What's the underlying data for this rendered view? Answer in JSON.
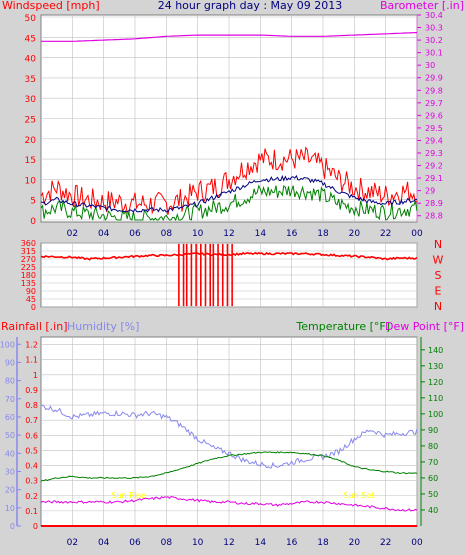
{
  "colors": {
    "background": "#d4d4d4",
    "plot_bg": "#ffffff",
    "grid": "#c0c0c0",
    "wind_avg": "#008000",
    "wind_gust": "#ff0000",
    "wind_10min": "#000080",
    "barometer": "#e000e0",
    "direction": "#ff0000",
    "rain": "#ff0000",
    "humidity": "#8888ee",
    "temperature": "#008000",
    "dewpoint": "#e000e0",
    "sun": "#ffff00",
    "axis_text_blue": "#000080",
    "title_text": "#000080"
  },
  "chart_data": [
    {
      "type": "line",
      "title": "24 hour graph day : May 09 2013",
      "left_label": "Windspeed [mph]",
      "right_label": "Barometer [.in]",
      "x_ticks": [
        "02",
        "04",
        "06",
        "08",
        "10",
        "12",
        "14",
        "16",
        "18",
        "20",
        "22",
        "00"
      ],
      "left_ticks": [
        "0",
        "5",
        "10",
        "15",
        "20",
        "25",
        "30",
        "35",
        "40",
        "45",
        "50"
      ],
      "right_ticks": [
        "28.8",
        "28.9",
        "29",
        "29.1",
        "29.2",
        "29.3",
        "29.4",
        "29.5",
        "29.6",
        "29.7",
        "29.8",
        "29.9",
        "30",
        "30.1",
        "30.2",
        "30.3",
        "30.4"
      ],
      "ylim_left": [
        0,
        50
      ],
      "ylim_right": [
        28.75,
        30.4
      ],
      "x_range_hours": [
        0,
        24
      ],
      "series": [
        {
          "key": "gust",
          "color_key": "wind_gust",
          "points": [
            [
              0,
              6
            ],
            [
              1,
              8
            ],
            [
              2,
              6
            ],
            [
              3,
              5
            ],
            [
              4,
              4.5
            ],
            [
              5,
              4.5
            ],
            [
              6,
              4
            ],
            [
              7,
              4
            ],
            [
              8,
              4
            ],
            [
              9,
              5
            ],
            [
              10,
              7
            ],
            [
              11,
              8
            ],
            [
              12,
              10
            ],
            [
              13,
              13
            ],
            [
              14,
              15
            ],
            [
              15,
              15
            ],
            [
              16,
              15
            ],
            [
              17,
              15
            ],
            [
              18,
              13
            ],
            [
              19,
              10
            ],
            [
              20,
              8
            ],
            [
              21,
              7
            ],
            [
              22,
              6
            ],
            [
              23,
              7
            ],
            [
              24,
              7
            ]
          ]
        },
        {
          "key": "avg10",
          "color_key": "wind_10min",
          "points": [
            [
              0,
              4
            ],
            [
              1,
              5
            ],
            [
              2,
              4
            ],
            [
              3,
              3.5
            ],
            [
              4,
              3
            ],
            [
              5,
              2.5
            ],
            [
              6,
              2.5
            ],
            [
              7,
              2.5
            ],
            [
              8,
              2.5
            ],
            [
              9,
              3
            ],
            [
              10,
              4
            ],
            [
              11,
              5.5
            ],
            [
              12,
              7
            ],
            [
              13,
              8.5
            ],
            [
              14,
              10
            ],
            [
              15,
              10
            ],
            [
              16,
              10.5
            ],
            [
              17,
              10
            ],
            [
              18,
              9
            ],
            [
              19,
              7
            ],
            [
              20,
              5.5
            ],
            [
              21,
              4.5
            ],
            [
              22,
              4
            ],
            [
              23,
              4.5
            ],
            [
              24,
              5
            ]
          ]
        },
        {
          "key": "avg",
          "color_key": "wind_avg",
          "points": [
            [
              0,
              2
            ],
            [
              1,
              3
            ],
            [
              2,
              2
            ],
            [
              3,
              1.5
            ],
            [
              4,
              1
            ],
            [
              5,
              0.5
            ],
            [
              6,
              0.5
            ],
            [
              7,
              0.5
            ],
            [
              8,
              0.5
            ],
            [
              9,
              1
            ],
            [
              10,
              2
            ],
            [
              11,
              3
            ],
            [
              12,
              4
            ],
            [
              13,
              5.5
            ],
            [
              14,
              7
            ],
            [
              15,
              7
            ],
            [
              16,
              7.5
            ],
            [
              17,
              7
            ],
            [
              18,
              6
            ],
            [
              19,
              4
            ],
            [
              20,
              3
            ],
            [
              21,
              2.5
            ],
            [
              22,
              2
            ],
            [
              23,
              2.5
            ],
            [
              24,
              3
            ]
          ]
        },
        {
          "key": "baro",
          "color_key": "barometer",
          "axis": "right",
          "points": [
            [
              0,
              30.19
            ],
            [
              2,
              30.19
            ],
            [
              4,
              30.2
            ],
            [
              6,
              30.21
            ],
            [
              8,
              30.23
            ],
            [
              10,
              30.24
            ],
            [
              12,
              30.24
            ],
            [
              14,
              30.24
            ],
            [
              16,
              30.23
            ],
            [
              18,
              30.23
            ],
            [
              20,
              30.24
            ],
            [
              22,
              30.25
            ],
            [
              24,
              30.26
            ]
          ]
        }
      ]
    },
    {
      "type": "line",
      "title": "",
      "y_ticks": [
        "0",
        "45",
        "90",
        "135",
        "180",
        "225",
        "270",
        "315",
        "360"
      ],
      "ylim": [
        0,
        360
      ],
      "compass_labels": [
        "N",
        "W",
        "S",
        "E",
        "N"
      ],
      "series": [
        {
          "key": "direction",
          "color_key": "direction",
          "points": [
            [
              0,
              285
            ],
            [
              2,
              280
            ],
            [
              3,
              270
            ],
            [
              4,
              275
            ],
            [
              5,
              280
            ],
            [
              6,
              285
            ],
            [
              7,
              290
            ],
            [
              8,
              290
            ],
            [
              9,
              295
            ],
            [
              10,
              300
            ],
            [
              11,
              295
            ],
            [
              12,
              295
            ],
            [
              13,
              300
            ],
            [
              14,
              300
            ],
            [
              15,
              300
            ],
            [
              16,
              300
            ],
            [
              17,
              300
            ],
            [
              18,
              295
            ],
            [
              19,
              290
            ],
            [
              20,
              285
            ],
            [
              21,
              280
            ],
            [
              22,
              270
            ],
            [
              23,
              275
            ],
            [
              24,
              275
            ]
          ]
        }
      ],
      "spikes_hours": [
        8.8,
        9.1,
        9.3,
        9.6,
        9.9,
        10.2,
        10.5,
        10.8,
        11.0,
        11.3,
        11.6,
        11.9,
        12.2
      ]
    },
    {
      "type": "line",
      "left_label_1": "Rainfall [.in]",
      "left_label_2": "Humidity [%]",
      "right_label_1": "Temperature [°F]",
      "right_label_2": "Dew Point [°F]",
      "rain_ticks": [
        "0",
        "0.1",
        "0.2",
        "0.3",
        "0.4",
        "0.5",
        "0.6",
        "0.7",
        "0.8",
        "0.9",
        "1",
        "1.1",
        "1.2"
      ],
      "humidity_ticks": [
        "0",
        "10",
        "20",
        "30",
        "40",
        "50",
        "60",
        "70",
        "80",
        "90",
        "100"
      ],
      "temp_ticks": [
        "40",
        "50",
        "60",
        "70",
        "80",
        "90",
        "100",
        "110",
        "120",
        "130",
        "140"
      ],
      "ylim_rain": [
        0,
        1.25
      ],
      "ylim_humidity": [
        0,
        104
      ],
      "ylim_temp": [
        30,
        148
      ],
      "sun_labels": [
        "Sun Rise",
        "Sun Set"
      ],
      "series": [
        {
          "key": "humidity",
          "color_key": "humidity",
          "axis": "humidity",
          "points": [
            [
              0,
              66
            ],
            [
              1,
              64
            ],
            [
              2,
              60
            ],
            [
              3,
              61
            ],
            [
              4,
              62
            ],
            [
              5,
              62
            ],
            [
              6,
              61
            ],
            [
              7,
              62
            ],
            [
              8,
              60
            ],
            [
              9,
              55
            ],
            [
              10,
              48
            ],
            [
              11,
              43
            ],
            [
              12,
              40
            ],
            [
              13,
              36
            ],
            [
              14,
              34
            ],
            [
              15,
              33
            ],
            [
              16,
              35
            ],
            [
              17,
              37
            ],
            [
              18,
              38
            ],
            [
              19,
              41
            ],
            [
              20,
              48
            ],
            [
              21,
              53
            ],
            [
              22,
              50
            ],
            [
              23,
              51
            ],
            [
              24,
              52
            ]
          ]
        },
        {
          "key": "temperature",
          "color_key": "temperature",
          "axis": "temp",
          "points": [
            [
              0,
              58
            ],
            [
              1,
              60
            ],
            [
              2,
              61
            ],
            [
              3,
              60
            ],
            [
              4,
              60
            ],
            [
              5,
              60
            ],
            [
              6,
              60
            ],
            [
              7,
              61
            ],
            [
              8,
              63
            ],
            [
              9,
              66
            ],
            [
              10,
              69
            ],
            [
              11,
              72
            ],
            [
              12,
              74
            ],
            [
              13,
              75
            ],
            [
              14,
              76
            ],
            [
              15,
              76
            ],
            [
              16,
              76
            ],
            [
              17,
              75
            ],
            [
              18,
              74
            ],
            [
              19,
              71
            ],
            [
              20,
              67
            ],
            [
              21,
              65
            ],
            [
              22,
              64
            ],
            [
              23,
              63
            ],
            [
              24,
              63
            ]
          ]
        },
        {
          "key": "dewpoint",
          "color_key": "dewpoint",
          "axis": "temp",
          "points": [
            [
              0,
              45
            ],
            [
              1,
              45
            ],
            [
              2,
              45
            ],
            [
              3,
              45
            ],
            [
              4,
              45
            ],
            [
              5,
              45
            ],
            [
              6,
              46
            ],
            [
              7,
              47
            ],
            [
              8,
              48
            ],
            [
              9,
              47
            ],
            [
              10,
              46
            ],
            [
              11,
              45
            ],
            [
              12,
              45
            ],
            [
              13,
              44
            ],
            [
              14,
              44
            ],
            [
              15,
              43
            ],
            [
              16,
              44
            ],
            [
              17,
              45
            ],
            [
              18,
              45
            ],
            [
              19,
              44
            ],
            [
              20,
              43
            ],
            [
              21,
              42
            ],
            [
              22,
              41
            ],
            [
              23,
              40
            ],
            [
              24,
              40
            ]
          ]
        },
        {
          "key": "rain",
          "color_key": "rain",
          "axis": "rain",
          "points": [
            [
              0,
              0
            ],
            [
              24,
              0
            ]
          ]
        }
      ]
    }
  ]
}
